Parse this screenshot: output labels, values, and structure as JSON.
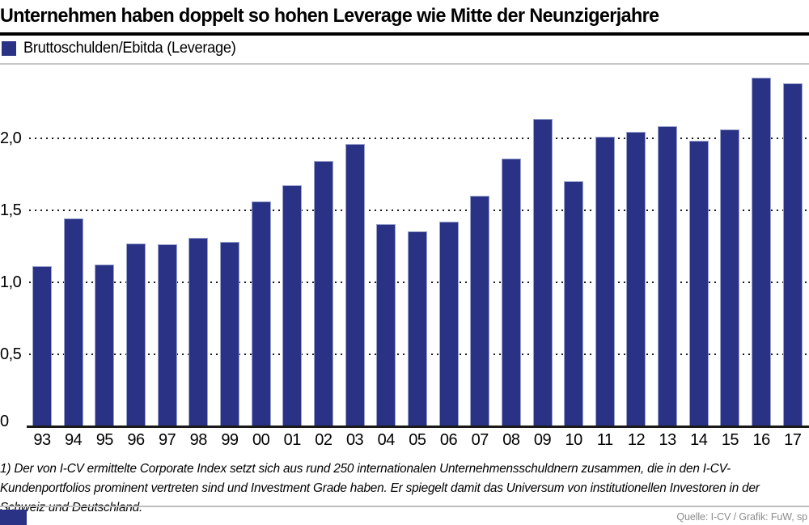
{
  "title": "Unternehmen haben doppelt so hohen Leverage wie Mitte der Neunzigerjahre",
  "legend": {
    "label": "Bruttoschulden/Ebitda (Leverage)",
    "color": "#2a3286"
  },
  "chart_data": {
    "type": "bar",
    "title": "Unternehmen haben doppelt so hohen Leverage wie Mitte der Neunzigerjahre",
    "series_name": "Bruttoschulden/Ebitda (Leverage)",
    "categories": [
      "93",
      "94",
      "95",
      "96",
      "97",
      "98",
      "99",
      "00",
      "01",
      "02",
      "03",
      "04",
      "05",
      "06",
      "07",
      "08",
      "09",
      "10",
      "11",
      "12",
      "13",
      "14",
      "15",
      "16",
      "17"
    ],
    "values": [
      1.11,
      1.44,
      1.12,
      1.27,
      1.26,
      1.31,
      1.28,
      1.56,
      1.67,
      1.84,
      1.96,
      1.4,
      1.35,
      1.42,
      1.6,
      1.86,
      2.13,
      1.7,
      2.01,
      2.04,
      2.08,
      1.98,
      2.06,
      2.42,
      2.38
    ],
    "xlabel": "",
    "ylabel": "",
    "ylim": [
      0,
      2.48
    ],
    "yticks": [
      0,
      0.5,
      1.0,
      1.5,
      2.0
    ],
    "ytick_labels": [
      "0",
      "0,5",
      "1,0",
      "1,5",
      "2,0"
    ],
    "grid": "horizontal-dotted",
    "legend_position": "top-left",
    "bar_color": "#2a3286",
    "bar_edge_color": "#9aa3cd"
  },
  "footnote": "1) Der von I-CV ermittelte Corporate Index setzt sich aus rund 250 internationalen Unternehmensschuldnern zusammen, die in den I-CV-Kundenportfolios prominent vertreten sind und Investment Grade haben. Er spiegelt damit das Universum von institutionellen Investoren in der Schweiz und Deutschland.",
  "source": "Quelle: I-CV / Grafik: FuW, sp",
  "colors": {
    "bar": "#2a3286",
    "bar_edge": "#9aa3cd",
    "rule_black": "#000000",
    "rule_gray": "#c6c6c6",
    "source_text": "#8c8c8c"
  }
}
